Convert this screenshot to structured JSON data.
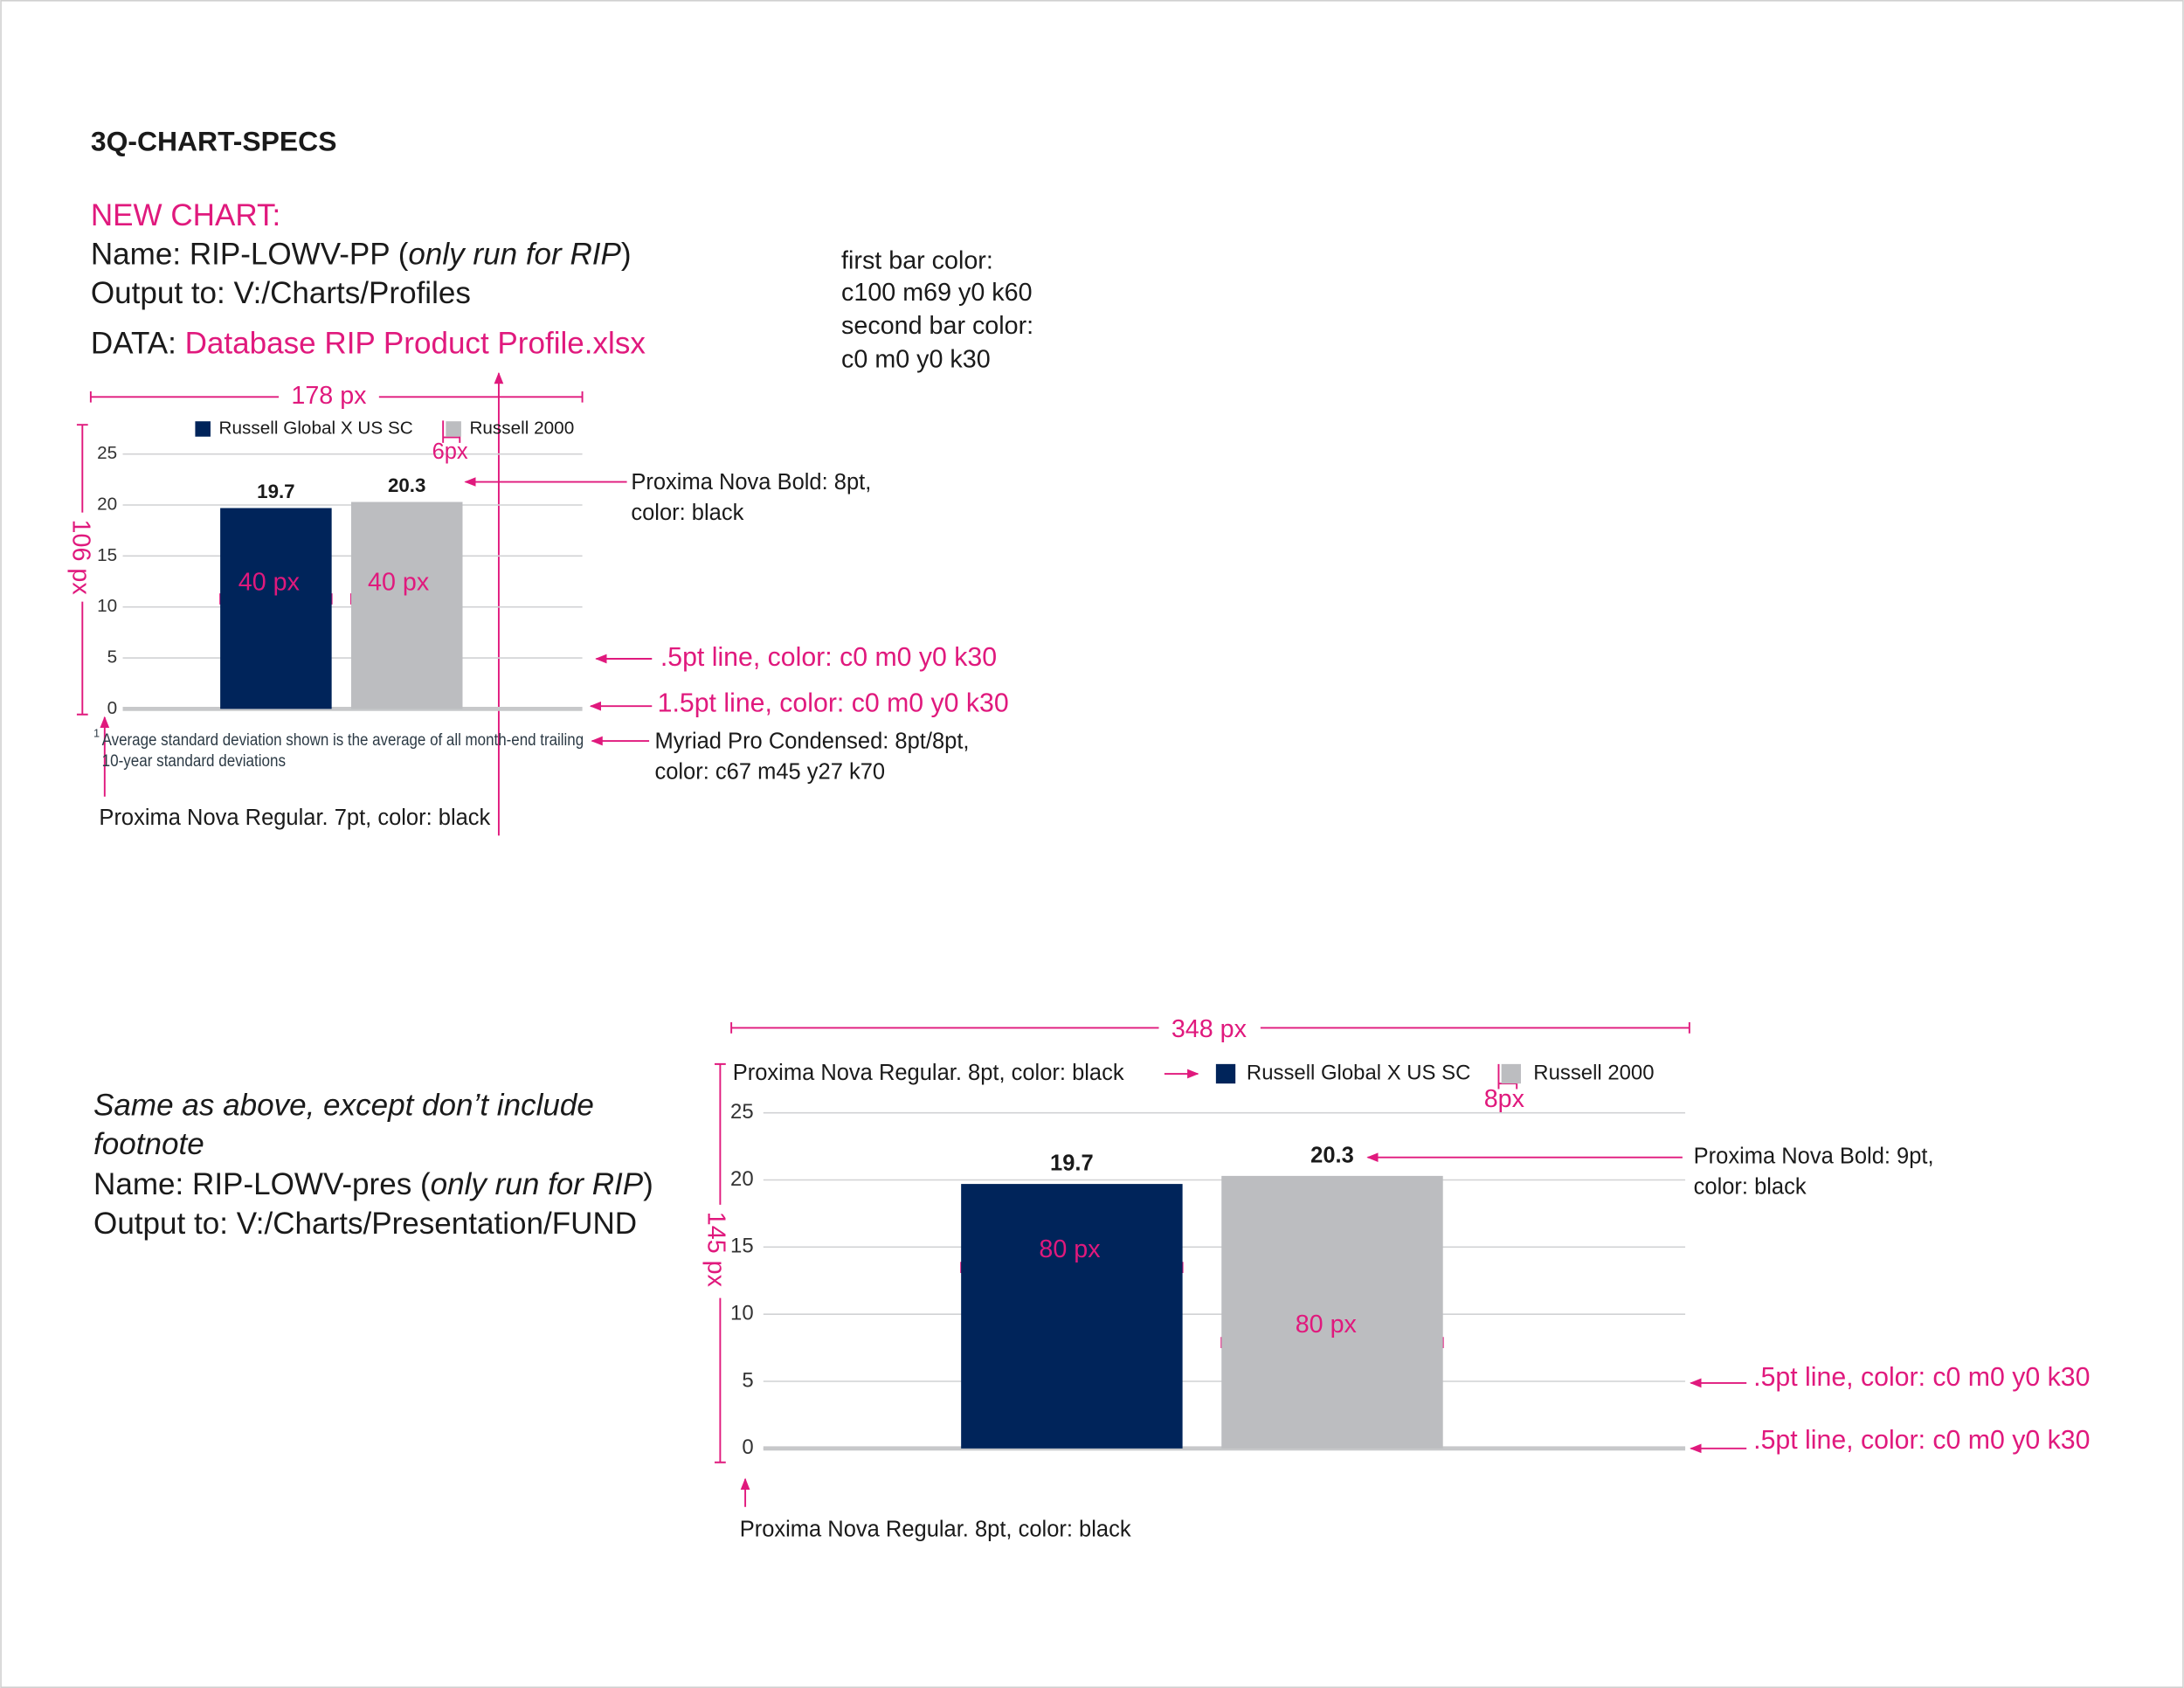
{
  "header": {
    "title": "3Q-CHART-SPECS"
  },
  "spec1": {
    "heading": "NEW CHART:",
    "name": [
      "Name: RIP-LOWV-PP (",
      "only run for RIP",
      ")"
    ],
    "output": "Output to: V:/Charts/Profiles",
    "data": [
      "DATA: ",
      "Database RIP Product Profile.xlsx"
    ],
    "color_notes": [
      "first bar color:",
      "c100 m69 y0 k60",
      "second bar color:",
      "c0 m0 y0 k30"
    ]
  },
  "spec2": {
    "description": [
      "Same as above, except don’t include",
      "footnote"
    ],
    "name": [
      "Name: RIP-LOWV-pres (",
      "only run for RIP",
      ")"
    ],
    "output": "Output to: V:/Charts/Presentation/FUND"
  },
  "chart_data": [
    {
      "type": "bar",
      "series": [
        {
          "name": "Russell Global X US SC",
          "color": "#00245a",
          "values": [
            19.7
          ]
        },
        {
          "name": "Russell 2000",
          "color": "#bcbdc0",
          "values": [
            20.3
          ]
        }
      ],
      "ylim": [
        0,
        25
      ],
      "yticks": [
        0,
        5,
        10,
        15,
        20,
        25
      ],
      "grid": true,
      "footnote": [
        "1",
        "Average standard deviation shown is the average of all month-end trailing",
        "10-year standard deviations"
      ],
      "annotations": [
        "178 px",
        "6px",
        "106 px",
        "40 px",
        "40 px",
        "Proxima Nova Bold: 8pt,",
        "color: black",
        ".5pt line, color: c0 m0 y0 k30",
        "1.5pt line, color: c0 m0 y0 k30",
        "Myriad Pro Condensed: 8pt/8pt,",
        "color: c67 m45 y27 k70",
        "Proxima Nova Regular. 7pt, color: black"
      ]
    },
    {
      "type": "bar",
      "series": [
        {
          "name": "Russell Global X US SC",
          "color": "#00245a",
          "values": [
            19.7
          ]
        },
        {
          "name": "Russell 2000",
          "color": "#bcbdc0",
          "values": [
            20.3
          ]
        }
      ],
      "ylim": [
        0,
        25
      ],
      "yticks": [
        0,
        5,
        10,
        15,
        20,
        25
      ],
      "grid": true,
      "annotations": [
        "348 px",
        "Proxima Nova Regular. 8pt, color: black",
        "8px",
        "145 px",
        "80 px",
        "80 px",
        "Proxima Nova Bold: 9pt,",
        "color: black",
        ".5pt line, color: c0 m0 y0 k30",
        ".5pt line, color: c0 m0 y0 k30",
        "Proxima Nova Regular. 8pt, color: black"
      ]
    }
  ]
}
